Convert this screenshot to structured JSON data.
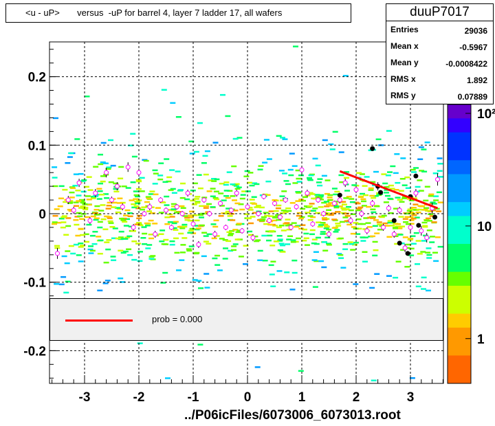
{
  "chart_data": {
    "type": "scatter",
    "title": "<u - uP>       versus  -uP for barrel 4, layer 7 ladder 17, all wafers",
    "xlabel": "../P06icFiles/6073006_6073013.root",
    "ylabel": "",
    "xlim": [
      -3.6,
      3.6
    ],
    "ylim": [
      -0.25,
      0.25
    ],
    "x_ticks": [
      -3,
      -2,
      -1,
      0,
      1,
      2,
      3
    ],
    "y_ticks": [
      {
        "value": 0.2,
        "label": "0.2"
      },
      {
        "value": 0.1,
        "label": "0.1"
      },
      {
        "value": 0,
        "label": "0"
      },
      {
        "value": -0.1,
        "label": "-0.1"
      },
      {
        "value": -0.2,
        "label": "-0.2"
      }
    ],
    "grid": true,
    "stats": {
      "name": "duuP7017",
      "rows": [
        {
          "label": "Entries",
          "value": "29036"
        },
        {
          "label": "Mean x",
          "value": "-0.5967"
        },
        {
          "label": "Mean y",
          "value": "-0.0008422"
        },
        {
          "label": "RMS x",
          "value": "1.892"
        },
        {
          "label": "RMS y",
          "value": "0.07889"
        }
      ]
    },
    "color_scale": {
      "labels": [
        {
          "value": 1,
          "label": "1"
        },
        {
          "value": 10,
          "label": "10"
        },
        {
          "value": 100,
          "label": "10²"
        }
      ]
    },
    "legend": {
      "entries": [
        {
          "label": "prob = 0.000",
          "color": "#ff0000"
        }
      ]
    },
    "fit_line": {
      "x": [
        1.7,
        3.5
      ],
      "y": [
        0.062,
        0.008
      ],
      "color": "#ff0000"
    },
    "profile_points": {
      "x": [
        -3.5,
        -3.3,
        -3.2,
        -3.1,
        -2.9,
        -2.8,
        -2.6,
        -2.5,
        -2.4,
        -2.3,
        -2.2,
        -2.1,
        -2.0,
        -1.9,
        -1.8,
        -1.7,
        -1.6,
        -1.5,
        -1.4,
        -1.3,
        -1.2,
        -1.1,
        -1.0,
        -0.9,
        -0.8,
        -0.7,
        -0.6,
        -0.5,
        -0.4,
        -0.3,
        -0.2,
        -0.1,
        0.0,
        0.1,
        0.2,
        0.3,
        0.4,
        0.5,
        0.6,
        0.7,
        0.8,
        0.9,
        1.0,
        1.1,
        1.2,
        1.3,
        1.4,
        1.5,
        1.6,
        1.7,
        1.8,
        1.9,
        2.0,
        2.1,
        2.2,
        2.3,
        2.4,
        2.5,
        2.6,
        2.7,
        2.8,
        2.9,
        3.0,
        3.1,
        3.2,
        3.3,
        3.4,
        3.5
      ],
      "y": [
        -0.058,
        0.02,
        0.005,
        0.045,
        -0.01,
        0.03,
        0.06,
        0.02,
        0.04,
        0.01,
        0.068,
        -0.02,
        0.06,
        0.0,
        0.01,
        -0.03,
        0.02,
        0.005,
        -0.02,
        0.01,
        0.0,
        0.03,
        -0.015,
        -0.045,
        0.02,
        0.0,
        -0.03,
        0.015,
        -0.02,
        0.005,
        0.03,
        -0.025,
        0.01,
        -0.035,
        0.0,
        0.025,
        -0.01,
        0.015,
        -0.005,
        0.02,
        -0.02,
        0.01,
        0.064,
        0.03,
        -0.015,
        0.02,
        0.0,
        -0.03,
        0.015,
        0.02,
        0.045,
        -0.01,
        0.035,
        0.0,
        -0.025,
        0.015,
        0.04,
        -0.02,
        0.008,
        -0.03,
        0.005,
        -0.05,
        -0.02,
        0.03,
        -0.025,
        -0.035,
        0.008,
        0.05
      ],
      "errors": [
        0.008,
        0.006,
        0.005,
        0.006,
        0.005,
        0.006,
        0.007,
        0.005,
        0.006,
        0.005,
        0.007,
        0.005,
        0.006,
        0.004,
        0.005,
        0.005,
        0.004,
        0.004,
        0.004,
        0.004,
        0.004,
        0.005,
        0.004,
        0.005,
        0.004,
        0.004,
        0.005,
        0.004,
        0.004,
        0.004,
        0.005,
        0.004,
        0.004,
        0.005,
        0.004,
        0.004,
        0.004,
        0.004,
        0.004,
        0.004,
        0.004,
        0.004,
        0.006,
        0.005,
        0.004,
        0.004,
        0.004,
        0.005,
        0.004,
        0.005,
        0.006,
        0.005,
        0.005,
        0.005,
        0.005,
        0.005,
        0.006,
        0.005,
        0.005,
        0.005,
        0.005,
        0.006,
        0.006,
        0.006,
        0.007,
        0.007,
        0.008,
        0.009
      ]
    },
    "outlier_points": {
      "x": [
        1.7,
        2.3,
        2.4,
        2.45,
        2.7,
        2.8,
        2.95,
        3.0,
        3.1,
        3.15,
        3.45
      ],
      "y": [
        0.027,
        0.095,
        0.04,
        0.031,
        -0.01,
        -0.043,
        -0.058,
        0.025,
        0.055,
        -0.017,
        -0.005
      ]
    },
    "density_colors": [
      "#6600cc",
      "#3300ff",
      "#0033ff",
      "#0066ff",
      "#0099ff",
      "#00ccff",
      "#00ffcc",
      "#00ff66",
      "#66ff00",
      "#ccff00",
      "#ffcc00",
      "#ff9900",
      "#ff6600"
    ]
  }
}
